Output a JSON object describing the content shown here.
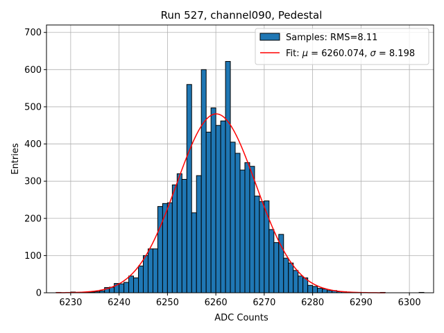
{
  "chart_data": {
    "type": "bar",
    "title": "Run 527, channel090, Pedestal",
    "xlabel": "ADC Counts",
    "ylabel": "Entries",
    "xlim": [
      6225,
      6305
    ],
    "ylim": [
      0,
      720
    ],
    "xticks": [
      6230,
      6240,
      6250,
      6260,
      6270,
      6280,
      6290,
      6300
    ],
    "yticks": [
      0,
      100,
      200,
      300,
      400,
      500,
      600,
      700
    ],
    "grid": true,
    "legend_position": "top-right",
    "bin_width": 1,
    "colors": {
      "bars": "#1f77b4",
      "bar_edge": "#000000",
      "fit": "#ff0000",
      "grid": "#b0b0b0"
    },
    "series": [
      {
        "name": "Samples: RMS=8.11",
        "kind": "histogram",
        "x": [
          6227,
          6228,
          6229,
          6230,
          6231,
          6232,
          6233,
          6234,
          6235,
          6236,
          6237,
          6238,
          6239,
          6240,
          6241,
          6242,
          6243,
          6244,
          6245,
          6246,
          6247,
          6248,
          6249,
          6250,
          6251,
          6252,
          6253,
          6254,
          6255,
          6256,
          6257,
          6258,
          6259,
          6260,
          6261,
          6262,
          6263,
          6264,
          6265,
          6266,
          6267,
          6268,
          6269,
          6270,
          6271,
          6272,
          6273,
          6274,
          6275,
          6276,
          6277,
          6278,
          6279,
          6280,
          6281,
          6282,
          6283,
          6284,
          6285,
          6286,
          6287,
          6288,
          6289,
          6290,
          6291,
          6292,
          6293,
          6294,
          6295,
          6296,
          6297,
          6298,
          6299,
          6300,
          6301,
          6302
        ],
        "values": [
          1,
          0,
          1,
          2,
          1,
          0,
          1,
          2,
          3,
          5,
          14,
          15,
          25,
          24,
          28,
          45,
          40,
          72,
          100,
          118,
          118,
          232,
          240,
          242,
          290,
          320,
          305,
          560,
          215,
          315,
          600,
          432,
          497,
          450,
          462,
          622,
          405,
          375,
          330,
          350,
          340,
          260,
          245,
          247,
          170,
          135,
          157,
          93,
          80,
          60,
          45,
          40,
          20,
          17,
          12,
          10,
          6,
          6,
          3,
          3,
          2,
          1,
          1,
          1,
          0,
          0,
          0,
          1,
          0,
          0,
          0,
          0,
          0,
          0,
          0,
          1
        ]
      },
      {
        "name": "Fit: μ = 6260.074, σ = 8.198",
        "kind": "gaussian",
        "mu": 6260.074,
        "sigma": 8.198,
        "amplitude": 481,
        "x_range": [
          6227,
          6295
        ]
      }
    ]
  }
}
